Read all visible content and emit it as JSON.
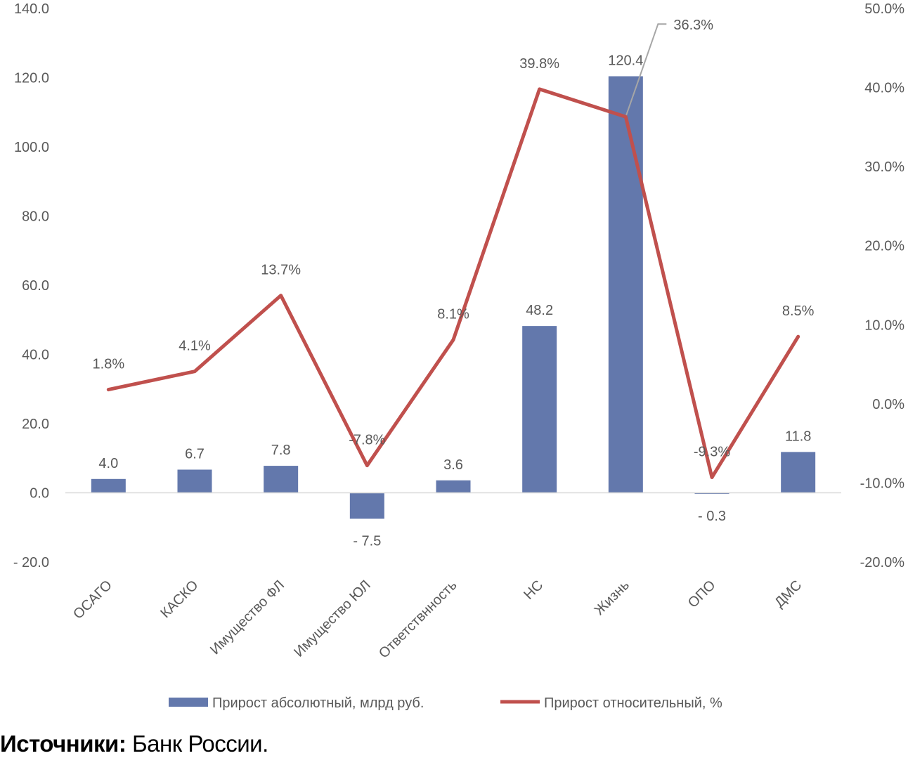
{
  "chart_data": {
    "type": "bar",
    "categories": [
      "ОСАГО",
      "КАСКО",
      "Имущество ФЛ",
      "Имущество ЮЛ",
      "Ответствнность",
      "НС",
      "Жизнь",
      "ОПО",
      "ДМС"
    ],
    "series": [
      {
        "name": "Прирост абсолютный, млрд  руб.",
        "type": "bar",
        "axis": "left",
        "values": [
          4.0,
          6.7,
          7.8,
          -7.5,
          3.6,
          48.2,
          120.4,
          -0.3,
          11.8
        ],
        "labels": [
          "4.0",
          "6.7",
          "7.8",
          "- 7.5",
          "3.6",
          "48.2",
          "120.4",
          "- 0.3",
          "11.8"
        ],
        "color": "#6378AC"
      },
      {
        "name": "Прирост относительный, %",
        "type": "line",
        "axis": "right",
        "values": [
          1.8,
          4.1,
          13.7,
          -7.8,
          8.1,
          39.8,
          36.3,
          -9.3,
          8.5
        ],
        "labels": [
          "1.8%",
          "4.1%",
          "13.7%",
          "-7.8%",
          "8.1%",
          "39.8%",
          "36.3%",
          "-9.3%",
          "8.5%"
        ],
        "color": "#C0504D"
      }
    ],
    "y_left": {
      "ylim": [
        -20,
        140
      ],
      "ticks": [
        -20,
        0,
        20,
        40,
        60,
        80,
        100,
        120,
        140
      ],
      "tick_labels": [
        "- 20.0",
        "0.0",
        "20.0",
        "40.0",
        "60.0",
        "80.0",
        "100.0",
        "120.0",
        "140.0"
      ]
    },
    "y_right": {
      "ylim": [
        -20,
        50
      ],
      "ticks": [
        -20,
        -10,
        0,
        10,
        20,
        30,
        40,
        50
      ],
      "tick_labels": [
        "-20.0%",
        "-10.0%",
        "0.0%",
        "10.0%",
        "20.0%",
        "30.0%",
        "40.0%",
        "50.0%"
      ]
    },
    "grid": false,
    "legend": "bottom"
  },
  "source": {
    "label": "Источники:",
    "text": "Банк России."
  }
}
